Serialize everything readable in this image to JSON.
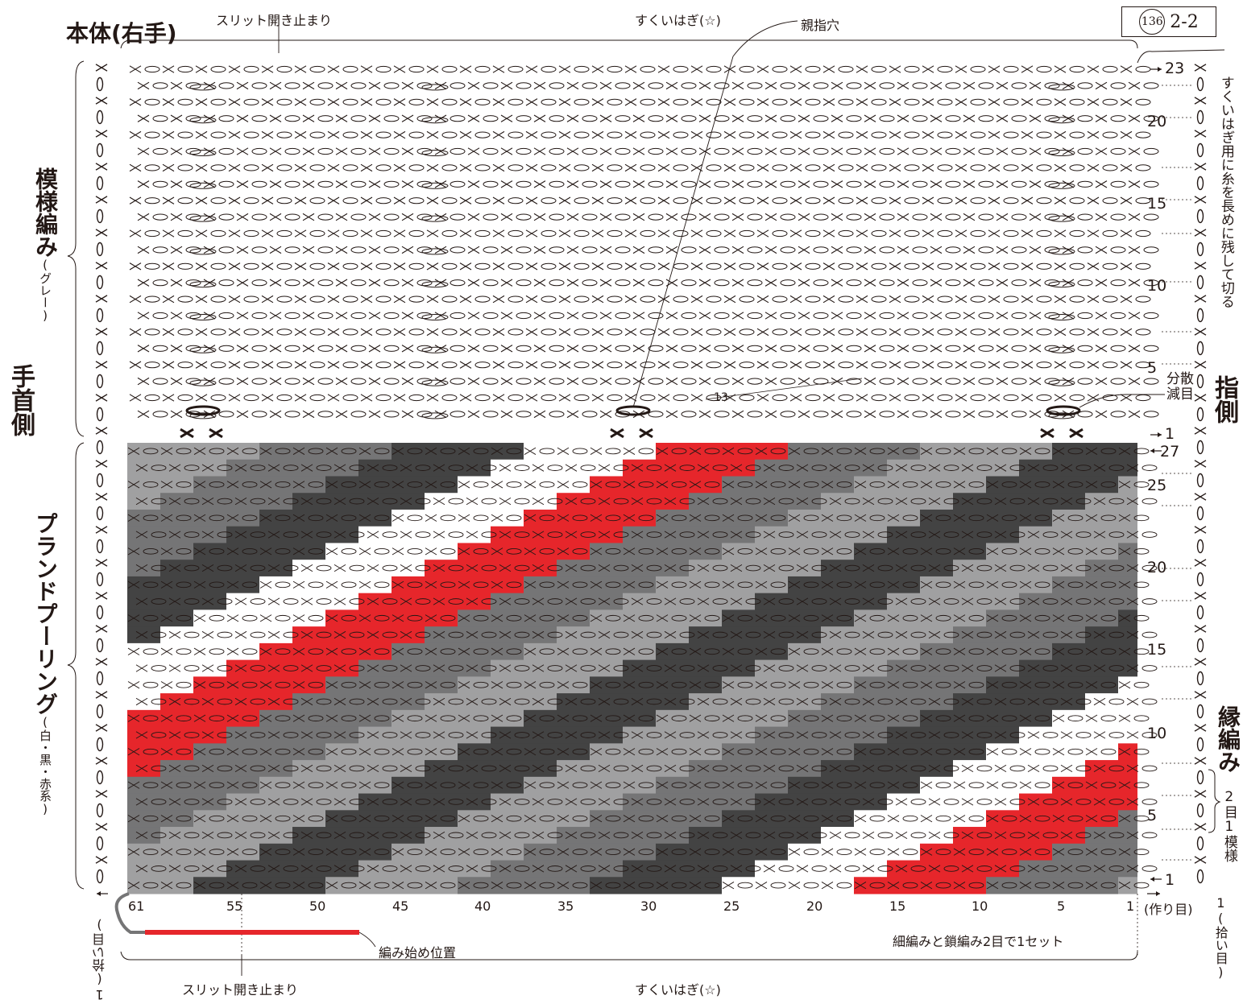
{
  "badge": {
    "circled": "136",
    "text": "2-2"
  },
  "titles": {
    "main": "本体(右手)",
    "wrist_side": "手首側",
    "finger_side": "指側"
  },
  "top_labels": {
    "slit_stop": "スリット開き止まり",
    "join": "すくいはぎ(☆)",
    "thumb_hole": "親指穴",
    "thirteen": "13",
    "spread_decrease": "分散減目"
  },
  "left_labels": {
    "pattern": "模様編み",
    "pattern_color": "(グレー)",
    "planned": "プランドプーリング",
    "planned_color": "(白・黒・赤系)",
    "pickup": "1(拾い目)"
  },
  "right_labels": {
    "long_tail": "すくいはぎ用に糸を長めに残して切る",
    "edge": "縁編み",
    "repeat": "2目1模様",
    "start_chain": "(作り目)",
    "pickup": "1(拾い目)"
  },
  "bottom_labels": {
    "start_position": "編み始め位置",
    "set_note": "細編みと鎖編み2目で1セット",
    "slit_stop": "スリット開き止まり",
    "join": "すくいはぎ(☆)"
  },
  "row_numbers_top": [
    "23",
    "20",
    "15",
    "10",
    "5",
    "1"
  ],
  "row_numbers_bottom": [
    "27",
    "25",
    "20",
    "15",
    "10",
    "5",
    "1"
  ],
  "column_numbers": [
    "61",
    "55",
    "50",
    "45",
    "40",
    "35",
    "30",
    "25",
    "20",
    "15",
    "10",
    "5",
    "1"
  ],
  "colors": {
    "red": "#e6262b",
    "white": "#ffffff",
    "light_gray": "#a0a0a1",
    "mid_gray": "#757576",
    "dark_gray": "#434343",
    "ink": "#231815"
  }
}
